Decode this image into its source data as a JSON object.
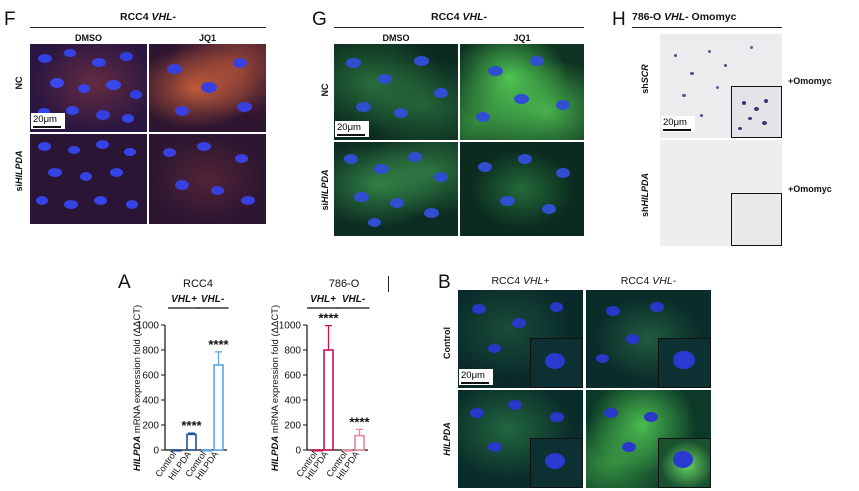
{
  "panel_F": {
    "letter": "F",
    "title_line": "RCC4",
    "title_italic": "VHL-",
    "cols": [
      "DMSO",
      "JQ1"
    ],
    "rows": [
      "NC",
      "si",
      "HILPDA"
    ],
    "scale_bar": "20μm"
  },
  "panel_G": {
    "letter": "G",
    "title_line": "RCC4",
    "title_italic": "VHL-",
    "cols": [
      "DMSO",
      "JQ1"
    ],
    "rows": [
      "NC",
      "si",
      "HILPDA"
    ],
    "scale_bar": "20μm"
  },
  "panel_H": {
    "letter": "H",
    "title_plain": "786-O",
    "title_italic": "VHL-",
    "title_end": "Omomyc",
    "rows": [
      "sh",
      "SCR",
      "sh",
      "HILPDA"
    ],
    "inset_label": "+Omomyc",
    "scale_bar": "20μm"
  },
  "panel_A": {
    "letter": "A",
    "chart_data": [
      {
        "type": "bar",
        "title": "RCC4",
        "groups": [
          "VHL+",
          "VHL-"
        ],
        "categories": [
          "Control",
          "HILPDA",
          "Control",
          "HILPDA"
        ],
        "values": [
          0,
          125,
          0,
          680
        ],
        "errors": [
          0,
          10,
          0,
          105
        ],
        "significance": [
          "",
          "****",
          "",
          "****"
        ],
        "ylabel_italic": "HILPDA",
        "ylabel_rest": " mRNA expression fold (ΔΔCT)",
        "ylim": [
          0,
          1000
        ],
        "yticks": [
          0,
          200,
          400,
          600,
          800,
          1000
        ],
        "colors": [
          "#1f4e9a",
          "#1f4e9a",
          "#5aa7e8",
          "#5aa7e8"
        ]
      },
      {
        "type": "bar",
        "title": "786-O",
        "groups": [
          "VHL+",
          "VHL-"
        ],
        "categories": [
          "Control",
          "HILPDA",
          "Control",
          "HILPDA"
        ],
        "values": [
          0,
          800,
          0,
          115
        ],
        "errors": [
          0,
          195,
          0,
          50
        ],
        "significance": [
          "",
          "****",
          "",
          "****"
        ],
        "ylabel_italic": "HILPDA",
        "ylabel_rest": " mRNA expression fold (ΔΔCT)",
        "ylim": [
          0,
          1000
        ],
        "yticks": [
          0,
          200,
          400,
          600,
          800,
          1000
        ],
        "colors": [
          "#c9134f",
          "#c9134f",
          "#e58a9a",
          "#e58a9a"
        ]
      }
    ]
  },
  "panel_B": {
    "letter": "B",
    "cols_plain": [
      "RCC4",
      "RCC4"
    ],
    "cols_italic": [
      "VHL+",
      "VHL-"
    ],
    "rows": [
      "Control",
      "HILPDA"
    ],
    "scale_bar": "20μm"
  }
}
